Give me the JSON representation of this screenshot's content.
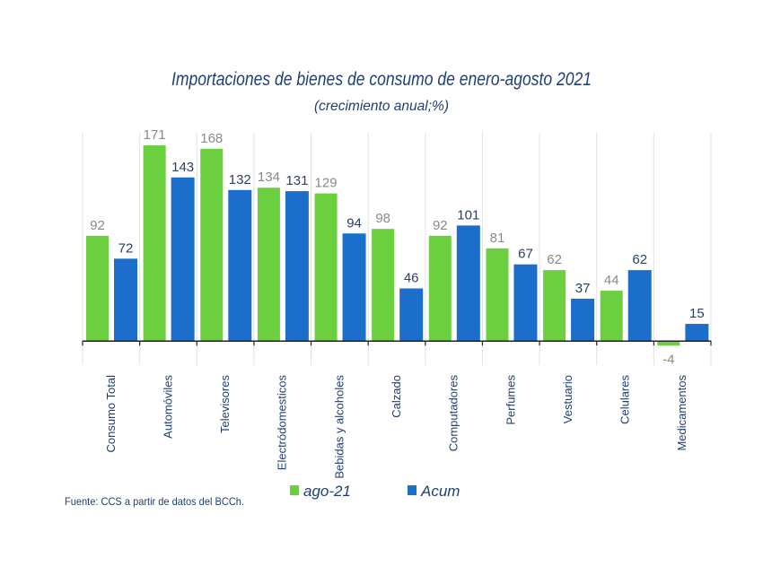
{
  "chart_data": {
    "type": "bar",
    "title": "Importaciones de bienes de consumo de enero-agosto 2021",
    "subtitle": "(crecimiento anual;%)",
    "categories": [
      "Consumo Total",
      "Automóviles",
      "Televisores",
      "Electródomesticos",
      "Bebidas y alcoholes",
      "Calzado",
      "Computadores",
      "Perfumes",
      "Vestuario",
      "Celulares",
      "Medicamentos"
    ],
    "series": [
      {
        "name": "ago-21",
        "color": "#6ccf3f",
        "label_color": "#8a8a8a",
        "values": [
          92,
          171,
          168,
          134,
          129,
          98,
          92,
          81,
          62,
          44,
          -4
        ]
      },
      {
        "name": "Acum",
        "color": "#1b6fcb",
        "label_color": "#2c3e6b",
        "values": [
          72,
          143,
          132,
          131,
          94,
          46,
          101,
          67,
          37,
          62,
          15
        ]
      }
    ],
    "ylim": [
      -21,
      182
    ],
    "grid": "vertical category separators",
    "legend_position": "bottom",
    "source": "Fuente: CCS a partir de datos del BCCh."
  }
}
